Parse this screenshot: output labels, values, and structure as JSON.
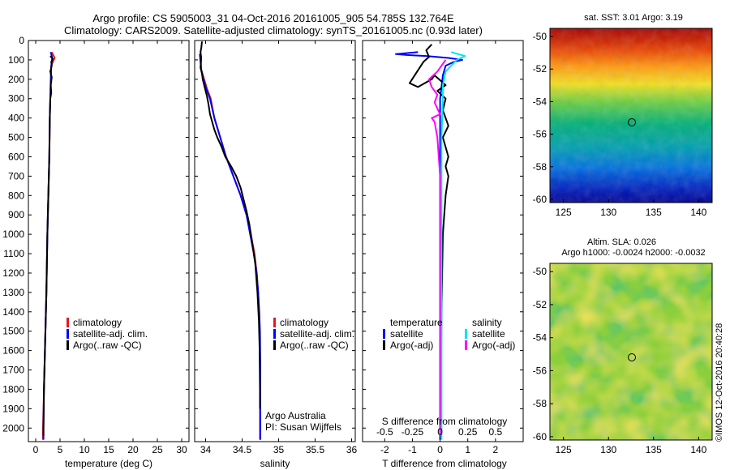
{
  "header": {
    "line1": "Argo profile: CS 5905003_31 04-Oct-2016 20161005_905 54.785S 132.764E",
    "line2": "Climatology: CARS2009. Satellite-adjusted climatology: synTS_20161005.nc (0.93d later)"
  },
  "colors": {
    "climatology": "#e41a1c",
    "satellite": "#0000ff",
    "argo": "#000000",
    "sal_satellite": "#00e5ee",
    "sal_argo": "#ff00ff"
  },
  "y_axis": {
    "ticks": [
      0,
      100,
      200,
      300,
      400,
      500,
      600,
      700,
      800,
      900,
      1000,
      1100,
      1200,
      1300,
      1400,
      1500,
      1600,
      1700,
      1800,
      1900,
      2000
    ]
  },
  "legends": {
    "climatology": "climatology",
    "satellite_adj": "satellite-adj. clim.",
    "argo_raw": "Argo(..raw -QC)",
    "diff_temperature": "temperature",
    "diff_salinity": "salinity",
    "satellite": "satellite",
    "argo_adj": "Argo(-adj)"
  },
  "credits": {
    "line1": "Argo Australia",
    "line2": "PI: Susan Wijffels"
  },
  "maps": {
    "sst": {
      "title": "sat. SST: 3.01  Argo: 3.19",
      "xticks": [
        "125",
        "130",
        "135",
        "140"
      ],
      "yticks": [
        "-50",
        "-52",
        "-54",
        "-56",
        "-58",
        "-60"
      ]
    },
    "sla": {
      "title1": "Altim. SLA: 0.026",
      "title2": "Argo h1000: -0.0024 h2000: -0.0032",
      "xticks": [
        "125",
        "130",
        "135",
        "140"
      ],
      "yticks": [
        "-50",
        "-52",
        "-54",
        "-56",
        "-58",
        "-60"
      ]
    },
    "stamp": "©IMOS 12-Oct-2016 20:40:28"
  },
  "chart_data": [
    {
      "type": "line",
      "name": "temperature",
      "xlabel": "temperature (deg C)",
      "ylim": [
        2070,
        0
      ],
      "xlim": [
        -1.5,
        31.5
      ],
      "xticks": [
        0,
        5,
        10,
        15,
        20,
        25,
        30
      ],
      "series": [
        {
          "key": "climatology",
          "color": "#e41a1c",
          "points": [
            [
              3.3,
              60
            ],
            [
              3.9,
              90
            ],
            [
              3.2,
              130
            ],
            [
              3.1,
              200
            ],
            [
              3.0,
              300
            ],
            [
              2.9,
              400
            ],
            [
              2.8,
              600
            ],
            [
              2.6,
              800
            ],
            [
              2.4,
              1000
            ],
            [
              2.2,
              1300
            ],
            [
              1.9,
              1600
            ],
            [
              1.7,
              1800
            ],
            [
              1.5,
              2000
            ],
            [
              1.5,
              2060
            ]
          ]
        },
        {
          "key": "satellite",
          "color": "#0000ff",
          "points": [
            [
              3.1,
              60
            ],
            [
              3.4,
              90
            ],
            [
              3.2,
              130
            ],
            [
              3.1,
              200
            ],
            [
              3.0,
              300
            ],
            [
              2.9,
              400
            ],
            [
              2.8,
              600
            ],
            [
              2.6,
              800
            ],
            [
              2.4,
              1000
            ],
            [
              2.2,
              1300
            ],
            [
              1.9,
              1600
            ],
            [
              1.7,
              1800
            ],
            [
              1.6,
              2000
            ],
            [
              1.6,
              2060
            ]
          ]
        },
        {
          "key": "argo",
          "color": "#000000",
          "points": [
            [
              3.0,
              80
            ],
            [
              3.5,
              95
            ],
            [
              3.2,
              110
            ],
            [
              3.3,
              130
            ],
            [
              3.0,
              160
            ],
            [
              3.3,
              190
            ],
            [
              3.1,
              230
            ],
            [
              3.2,
              270
            ],
            [
              3.0,
              300
            ],
            [
              2.9,
              400
            ],
            [
              2.8,
              600
            ],
            [
              2.6,
              800
            ],
            [
              2.4,
              1000
            ],
            [
              2.2,
              1300
            ],
            [
              1.9,
              1600
            ],
            [
              1.7,
              1800
            ],
            [
              1.6,
              2000
            ],
            [
              1.6,
              2040
            ]
          ]
        }
      ]
    },
    {
      "type": "line",
      "name": "salinity",
      "xlabel": "salinity",
      "ylim": [
        2070,
        0
      ],
      "xlim": [
        33.85,
        36.05
      ],
      "xticks": [
        34,
        34.5,
        35,
        35.5,
        36
      ],
      "series": [
        {
          "key": "climatology",
          "color": "#e41a1c",
          "points": [
            [
              33.93,
              70
            ],
            [
              33.94,
              150
            ],
            [
              33.98,
              200
            ],
            [
              34.02,
              250
            ],
            [
              34.07,
              300
            ],
            [
              34.12,
              400
            ],
            [
              34.2,
              500
            ],
            [
              34.28,
              600
            ],
            [
              34.38,
              700
            ],
            [
              34.48,
              800
            ],
            [
              34.56,
              900
            ],
            [
              34.62,
              1000
            ],
            [
              34.67,
              1100
            ],
            [
              34.7,
              1200
            ],
            [
              34.72,
              1300
            ],
            [
              34.735,
              1400
            ],
            [
              34.74,
              1500
            ],
            [
              34.745,
              1700
            ],
            [
              34.745,
              2000
            ],
            [
              34.745,
              2060
            ]
          ]
        },
        {
          "key": "satellite",
          "color": "#0000ff",
          "points": [
            [
              33.92,
              70
            ],
            [
              33.94,
              150
            ],
            [
              33.97,
              200
            ],
            [
              34.01,
              250
            ],
            [
              34.06,
              300
            ],
            [
              34.12,
              400
            ],
            [
              34.2,
              500
            ],
            [
              34.28,
              600
            ],
            [
              34.38,
              700
            ],
            [
              34.48,
              800
            ],
            [
              34.56,
              900
            ],
            [
              34.61,
              1000
            ],
            [
              34.66,
              1100
            ],
            [
              34.7,
              1200
            ],
            [
              34.72,
              1300
            ],
            [
              34.735,
              1400
            ],
            [
              34.745,
              1500
            ],
            [
              34.75,
              1700
            ],
            [
              34.75,
              2000
            ],
            [
              34.75,
              2060
            ]
          ]
        },
        {
          "key": "argo",
          "color": "#000000",
          "points": [
            [
              33.95,
              5
            ],
            [
              33.94,
              40
            ],
            [
              33.93,
              60
            ],
            [
              33.94,
              90
            ],
            [
              33.93,
              140
            ],
            [
              33.95,
              170
            ],
            [
              33.96,
              200
            ],
            [
              33.98,
              230
            ],
            [
              34.0,
              260
            ],
            [
              34.02,
              290
            ],
            [
              34.04,
              330
            ],
            [
              34.06,
              380
            ],
            [
              34.09,
              420
            ],
            [
              34.12,
              460
            ],
            [
              34.16,
              500
            ],
            [
              34.22,
              550
            ],
            [
              34.27,
              600
            ],
            [
              34.35,
              650
            ],
            [
              34.42,
              700
            ],
            [
              34.48,
              760
            ],
            [
              34.52,
              820
            ],
            [
              34.56,
              880
            ],
            [
              34.6,
              950
            ],
            [
              34.64,
              1050
            ],
            [
              34.68,
              1150
            ],
            [
              34.71,
              1300
            ],
            [
              34.73,
              1450
            ],
            [
              34.74,
              1600
            ],
            [
              34.745,
              1800
            ],
            [
              34.745,
              1900
            ]
          ]
        }
      ]
    },
    {
      "type": "line",
      "name": "differences",
      "xlabel": "T difference from climatology",
      "xlabel2": "S difference from climatology",
      "ylim": [
        2070,
        0
      ],
      "xlim": [
        -2.8,
        3.0
      ],
      "xticks": [
        -2,
        -1,
        0,
        1,
        2
      ],
      "xticks_s": [
        "-0.5",
        "-0.25",
        "0",
        "0.25",
        "0.5"
      ],
      "series": [
        {
          "key": "t_satellite",
          "color": "#0000ff",
          "points": [
            [
              -0.8,
              60
            ],
            [
              -1.6,
              70
            ],
            [
              -1.2,
              75
            ],
            [
              -0.5,
              80
            ],
            [
              0.3,
              90
            ],
            [
              0.8,
              100
            ],
            [
              0.5,
              110
            ],
            [
              0.2,
              130
            ],
            [
              0.1,
              180
            ],
            [
              0.0,
              300
            ],
            [
              0.0,
              600
            ],
            [
              0.0,
              1000
            ],
            [
              0.0,
              2000
            ],
            [
              0.0,
              2060
            ]
          ]
        },
        {
          "key": "t_argo",
          "color": "#000000",
          "points": [
            [
              -0.3,
              20
            ],
            [
              -0.5,
              50
            ],
            [
              -0.4,
              85
            ],
            [
              -0.6,
              110
            ],
            [
              -1.1,
              220
            ],
            [
              -0.8,
              240
            ],
            [
              -0.3,
              200
            ],
            [
              -0.2,
              180
            ],
            [
              0.2,
              230
            ],
            [
              -0.1,
              260
            ],
            [
              0.2,
              300
            ],
            [
              0.1,
              360
            ],
            [
              0.3,
              440
            ],
            [
              0.1,
              500
            ],
            [
              0.3,
              600
            ],
            [
              0.2,
              650
            ],
            [
              0.3,
              700
            ],
            [
              0.2,
              800
            ],
            [
              0.1,
              1000
            ],
            [
              0.05,
              1400
            ],
            [
              0.02,
              2040
            ]
          ]
        },
        {
          "key": "s_satellite",
          "color": "#00e5ee",
          "points": [
            [
              0.4,
              60
            ],
            [
              0.9,
              80
            ],
            [
              0.6,
              100
            ],
            [
              0.2,
              160
            ],
            [
              0.1,
              230
            ],
            [
              0.1,
              300
            ],
            [
              0.05,
              500
            ],
            [
              0.05,
              800
            ],
            [
              0.05,
              1200
            ],
            [
              0.05,
              2060
            ]
          ]
        },
        {
          "key": "s_argo",
          "color": "#ff00ff",
          "points": [
            [
              0.2,
              100
            ],
            [
              -0.1,
              160
            ],
            [
              -0.4,
              200
            ],
            [
              -0.3,
              240
            ],
            [
              -0.1,
              280
            ],
            [
              -0.2,
              320
            ],
            [
              0.0,
              380
            ],
            [
              -0.3,
              400
            ],
            [
              -0.2,
              420
            ],
            [
              -0.1,
              500
            ],
            [
              0.0,
              700
            ],
            [
              0.0,
              1000
            ],
            [
              0.0,
              2040
            ]
          ]
        }
      ]
    }
  ]
}
